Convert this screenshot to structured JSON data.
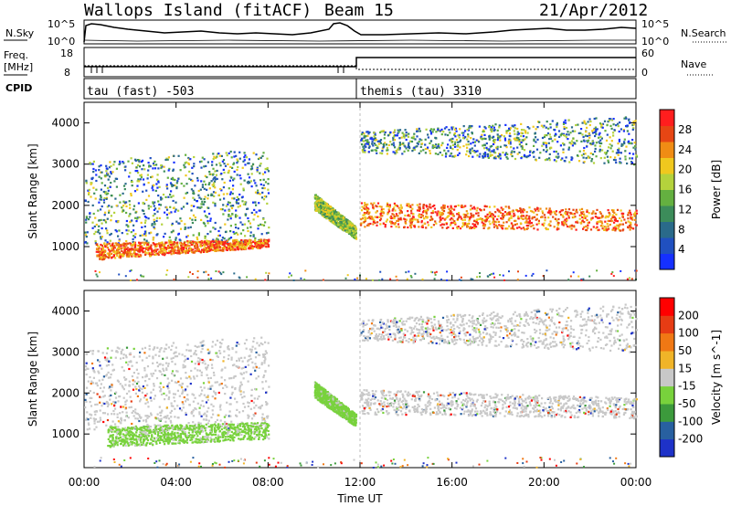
{
  "header": {
    "title": "Wallops Island (fitACF)",
    "beam": "Beam 15",
    "date": "21/Apr/2012"
  },
  "top_panels": {
    "nsky_label": "N.Sky",
    "nsearch_label": "N.Search",
    "sky_scale_top": "10^5",
    "sky_scale_bottom": "10^0",
    "freq_label_1": "Freq.",
    "freq_label_2": "[MHz]",
    "freq_ticks": [
      "18",
      "8"
    ],
    "nave_label": "Nave",
    "nave_ticks": [
      "60",
      "0"
    ],
    "cpid_label": "CPID",
    "cpid_1": "tau (fast) -503",
    "cpid_2": "themis (tau) 3310"
  },
  "chart_data": [
    {
      "type": "heatmap",
      "name_hint": "power",
      "ylabel": "Slant Range [km]",
      "yticks": [
        1000,
        2000,
        3000,
        4000
      ],
      "ylim": [
        180,
        4500
      ],
      "xlim": [
        0,
        24
      ],
      "colorbar": {
        "label": "Power [dB]",
        "ticks": [
          "4",
          "8",
          "12",
          "16",
          "20",
          "24",
          "28"
        ],
        "colors": [
          "#1530ff",
          "#2050c0",
          "#2a6a8a",
          "#3c8c5a",
          "#64b040",
          "#b4d23c",
          "#f0c81e",
          "#f08c14",
          "#e64614",
          "#ff1e1e"
        ]
      },
      "bands": [
        {
          "x0": 0.0,
          "x1": 8.0,
          "y0a": 1100,
          "y0b": 1100,
          "y1a": 3100,
          "y1b": 3400,
          "level": "mixed"
        },
        {
          "x0": 0.5,
          "x1": 8.0,
          "y0a": 700,
          "y0b": 1000,
          "y1a": 1100,
          "y1b": 1200,
          "level": "high"
        },
        {
          "x0": 10.0,
          "x1": 11.8,
          "y0a": 1900,
          "y0b": 1200,
          "y1a": 2300,
          "y1b": 1500,
          "level": "mid"
        },
        {
          "x0": 12.0,
          "x1": 24.0,
          "y0a": 1500,
          "y0b": 1400,
          "y1a": 2100,
          "y1b": 1900,
          "level": "high"
        },
        {
          "x0": 12.0,
          "x1": 24.0,
          "y0a": 3300,
          "y0b": 3000,
          "y1a": 3800,
          "y1b": 4200,
          "level": "mixed"
        }
      ]
    },
    {
      "type": "heatmap",
      "name_hint": "velocity",
      "ylabel": "Slant Range [km]",
      "yticks": [
        1000,
        2000,
        3000,
        4000
      ],
      "ylim": [
        180,
        4500
      ],
      "xlim": [
        0,
        24
      ],
      "colorbar": {
        "label": "Velocity [m s^-1]",
        "ticks": [
          "200",
          "100",
          "50",
          "15",
          "-15",
          "-50",
          "-100",
          "-200"
        ],
        "colors": [
          "#1e32c8",
          "#2860a0",
          "#3c9a3c",
          "#78d23c",
          "#c8c8c8",
          "#f0b428",
          "#f07814",
          "#e63c14",
          "#ff0000"
        ]
      },
      "bands": [
        {
          "x0": 0.0,
          "x1": 8.0,
          "y0a": 1100,
          "y0b": 1100,
          "y1a": 3100,
          "y1b": 3400,
          "level": "gray"
        },
        {
          "x0": 1.0,
          "x1": 8.0,
          "y0a": 700,
          "y0b": 900,
          "y1a": 1200,
          "y1b": 1300,
          "level": "green"
        },
        {
          "x0": 10.0,
          "x1": 11.8,
          "y0a": 1900,
          "y0b": 1200,
          "y1a": 2300,
          "y1b": 1500,
          "level": "green"
        },
        {
          "x0": 12.0,
          "x1": 24.0,
          "y0a": 1500,
          "y0b": 1400,
          "y1a": 2100,
          "y1b": 1900,
          "level": "gray"
        },
        {
          "x0": 12.0,
          "x1": 24.0,
          "y0a": 3300,
          "y0b": 3000,
          "y1a": 3800,
          "y1b": 4200,
          "level": "gray"
        }
      ]
    }
  ],
  "xaxis": {
    "label": "Time UT",
    "ticks": [
      "00:00",
      "04:00",
      "08:00",
      "12:00",
      "16:00",
      "20:00",
      "00:00"
    ]
  }
}
